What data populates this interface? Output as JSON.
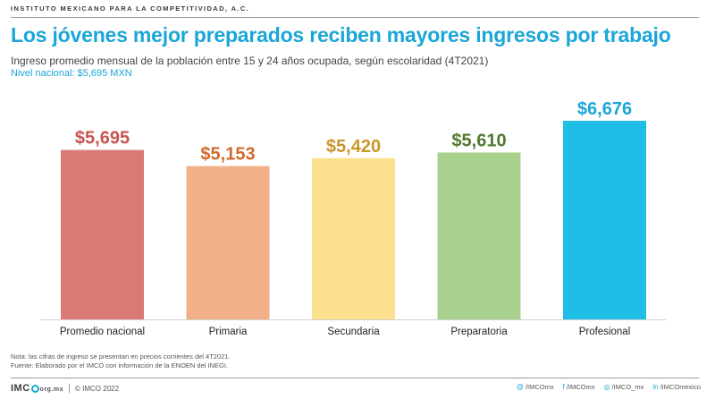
{
  "header": {
    "org": "INSTITUTO MEXICANO PARA LA COMPETITIVIDAD, A.C.",
    "title": "Los jóvenes mejor preparados reciben mayores ingresos por trabajo",
    "subtitle": "Ingreso promedio mensual de la población entre 15 y 24 años ocupada, según escolaridad (4T2021)",
    "national_level": "Nivel nacional: $5,695 MXN"
  },
  "chart_data": {
    "type": "bar",
    "title": "Los jóvenes mejor preparados reciben mayores ingresos por trabajo",
    "subtitle": "Ingreso promedio mensual de la población entre 15 y 24 años ocupada, según escolaridad (4T2021)",
    "xlabel": "",
    "ylabel": "",
    "categories": [
      "Promedio nacional",
      "Primaria",
      "Secundaria",
      "Preparatoria",
      "Profesional"
    ],
    "values": [
      5695,
      5153,
      5420,
      5610,
      6676
    ],
    "value_labels": [
      "$5,695",
      "$5,153",
      "$5,420",
      "$5,610",
      "$6,676"
    ],
    "bar_colors": [
      "#d97a76",
      "#f2b088",
      "#fde08e",
      "#a9d18e",
      "#1ebee6"
    ],
    "label_colors": [
      "#c85450",
      "#d06b2a",
      "#c9962a",
      "#4f7a30",
      "#1aa6d6"
    ],
    "ylim": [
      0,
      6676
    ],
    "grid": false,
    "legend": "none"
  },
  "notes": {
    "note": "Nota: las cifras de ingreso se presentan en precios corrientes del 4T2021.",
    "source": "Fuente: Elaborado por el IMCO con información de la ENOEN del INEGI."
  },
  "footer": {
    "logo_pre": "IMC",
    "logo_suffix": "org.mx",
    "copyright": "© IMCO 2022",
    "socials": [
      {
        "icon": "at-icon",
        "glyph": "@",
        "label": "/IMCOmx"
      },
      {
        "icon": "facebook-icon",
        "glyph": "f",
        "label": "/IMCOmx"
      },
      {
        "icon": "instagram-icon",
        "glyph": "◎",
        "label": "/IMCO_mx"
      },
      {
        "icon": "linkedin-icon",
        "glyph": "in",
        "label": "/IMCOmexico"
      }
    ]
  }
}
